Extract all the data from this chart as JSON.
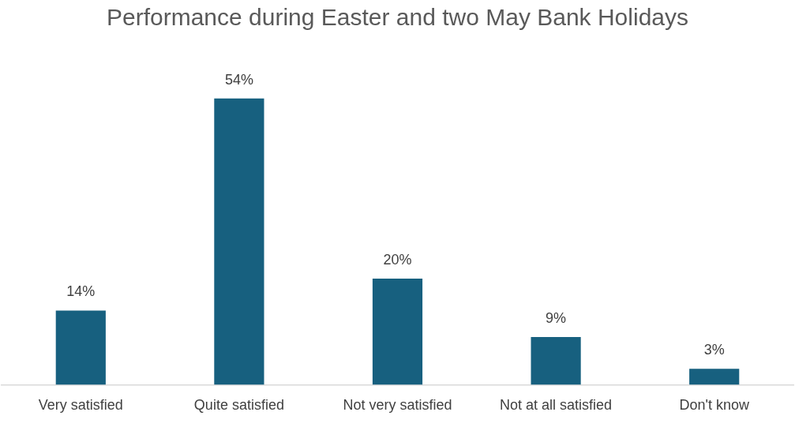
{
  "chart_data": {
    "type": "bar",
    "title": "Performance during Easter and two May Bank Holidays",
    "categories": [
      "Very satisfied",
      "Quite satisfied",
      "Not very satisfied",
      "Not at all satisfied",
      "Don't know"
    ],
    "values": [
      14,
      54,
      20,
      9,
      3
    ],
    "value_labels": [
      "14%",
      "54%",
      "20%",
      "9%",
      "3%"
    ],
    "color": "#17607f"
  }
}
